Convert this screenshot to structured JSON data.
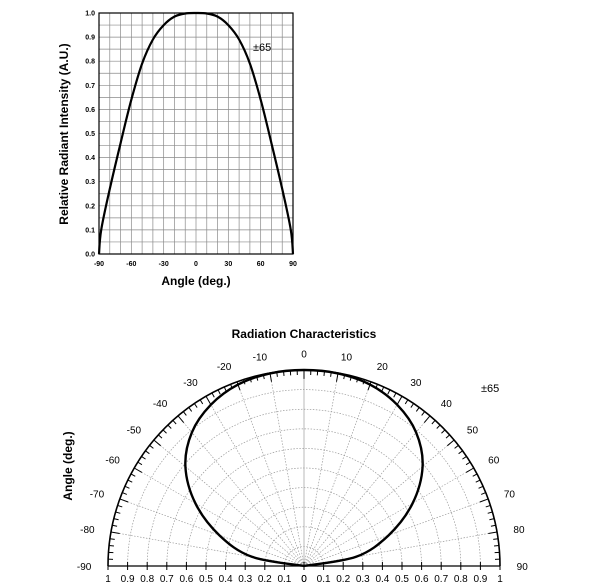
{
  "chart_data": [
    {
      "type": "line",
      "title": "",
      "xlabel": "Angle (deg.)",
      "ylabel": "Relative Radiant Intensity (A.U.)",
      "xlim": [
        -90,
        90
      ],
      "ylim": [
        0,
        1.0
      ],
      "grid": true,
      "x_ticks": [
        "-90",
        "-60",
        "-30",
        "0",
        "30",
        "60",
        "90"
      ],
      "y_ticks": [
        "0.0",
        "0.1",
        "0.2",
        "0.3",
        "0.4",
        "0.5",
        "0.6",
        "0.7",
        "0.8",
        "0.9",
        "1.0"
      ],
      "annotation": "±65",
      "series": [
        {
          "x": [
            -90,
            -88,
            -80,
            -70,
            -60,
            -50,
            -40,
            -30,
            -20,
            -10,
            0,
            10,
            20,
            30,
            40,
            50,
            60,
            70,
            80,
            88,
            90
          ],
          "y": [
            0.0,
            0.1,
            0.27,
            0.46,
            0.64,
            0.79,
            0.89,
            0.95,
            0.985,
            0.998,
            1.0,
            0.998,
            0.985,
            0.95,
            0.89,
            0.79,
            0.64,
            0.46,
            0.27,
            0.1,
            0.0
          ]
        }
      ]
    },
    {
      "type": "polar",
      "title": "Radiation Characteristics",
      "ylabel": "Angle (deg.)",
      "angle_range": [
        -90,
        90
      ],
      "angle_ticks": [
        "-90",
        "-80",
        "-70",
        "-60",
        "-50",
        "-40",
        "-30",
        "-20",
        "-10",
        "0",
        "10",
        "20",
        "30",
        "40",
        "50",
        "60",
        "70",
        "80",
        "90"
      ],
      "radial_ticks_left": [
        "1",
        "0.9",
        "0.8",
        "0.7",
        "0.6",
        "0.5",
        "0.4",
        "0.3",
        "0.2",
        "0.1",
        "0"
      ],
      "radial_ticks_right": [
        "0",
        "0.1",
        "0.2",
        "0.3",
        "0.4",
        "0.5",
        "0.6",
        "0.7",
        "0.8",
        "0.9",
        "1"
      ],
      "rlim": [
        0,
        1
      ],
      "grid": true,
      "annotation": "±65",
      "series": [
        {
          "theta": [
            -90,
            -80,
            -70,
            -60,
            -50,
            -40,
            -30,
            -20,
            -10,
            0,
            10,
            20,
            30,
            40,
            50,
            60,
            70,
            80,
            90
          ],
          "r": [
            0.0,
            0.27,
            0.46,
            0.64,
            0.79,
            0.89,
            0.95,
            0.985,
            0.998,
            1.0,
            0.998,
            0.985,
            0.95,
            0.89,
            0.79,
            0.64,
            0.46,
            0.27,
            0.0
          ]
        }
      ]
    }
  ]
}
